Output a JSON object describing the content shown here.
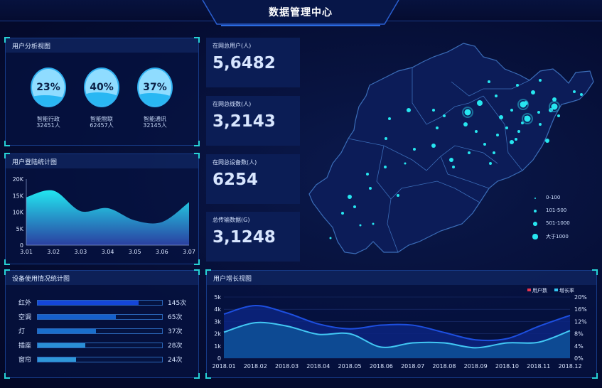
{
  "header": {
    "title": "数据管理中心"
  },
  "user_analysis": {
    "title": "用户分析视图",
    "items": [
      {
        "percent": "23%",
        "level": 0.23,
        "name": "智能行政",
        "count": "32451人"
      },
      {
        "percent": "40%",
        "level": 0.4,
        "name": "智能物联",
        "count": "62457人"
      },
      {
        "percent": "37%",
        "level": 0.37,
        "name": "智能通讯",
        "count": "32145人"
      }
    ]
  },
  "login_chart": {
    "title": "用户登陆统计图"
  },
  "stats": [
    {
      "label": "在网总用户(人)",
      "value": "5,6482"
    },
    {
      "label": "在网总线数(人)",
      "value": "3,2143"
    },
    {
      "label": "在网总设备数(人)",
      "value": "6254"
    },
    {
      "label": "总传输数据(G)",
      "value": "3,1248"
    }
  ],
  "map": {
    "legend": [
      "0-100",
      "101-500",
      "501-1000",
      "大于1000"
    ],
    "dot_color": "#27e6f0"
  },
  "device_usage": {
    "title": "设备使用情况统计图",
    "items": [
      {
        "name": "红外",
        "count": "145次",
        "fill": 0.81,
        "color": "#1446d8"
      },
      {
        "name": "空调",
        "count": "65次",
        "fill": 0.63,
        "color": "#1560cc"
      },
      {
        "name": "灯",
        "count": "37次",
        "fill": 0.47,
        "color": "#1a6fcc"
      },
      {
        "name": "插座",
        "count": "28次",
        "fill": 0.38,
        "color": "#2a8fd6"
      },
      {
        "name": "窗帘",
        "count": "24次",
        "fill": 0.31,
        "color": "#2f97d8"
      }
    ]
  },
  "growth_chart": {
    "title": "用户增长视图"
  },
  "chart_data": [
    {
      "type": "area",
      "title": "用户登陆统计图",
      "categories": [
        "3.01",
        "3.02",
        "3.03",
        "3.04",
        "3.05",
        "3.06",
        "3.07"
      ],
      "values": [
        14500,
        16500,
        10300,
        11200,
        7500,
        7000,
        13000
      ],
      "ylim": [
        0,
        20000
      ],
      "yticks": [
        "0",
        "5K",
        "10K",
        "15K",
        "20K"
      ],
      "color": "#22e0f0"
    },
    {
      "type": "area",
      "title": "用户增长视图",
      "categories": [
        "2018.01",
        "2018.02",
        "2018.03",
        "2018.04",
        "2018.05",
        "2018.06",
        "2018.07",
        "2018.08",
        "2018.09",
        "2018.10",
        "2018.11",
        "2018.12"
      ],
      "series": [
        {
          "name": "用户数",
          "axis": "left",
          "values": [
            3600,
            4300,
            3700,
            2800,
            2400,
            2700,
            2700,
            2100,
            1500,
            1600,
            2600,
            3500
          ],
          "color": "#e8344e"
        },
        {
          "name": "增长率",
          "axis": "right",
          "values": [
            8.5,
            11.6,
            10.5,
            7.8,
            8,
            3.6,
            5,
            5,
            3.4,
            5,
            5.2,
            9
          ],
          "color": "#33c6f2"
        }
      ],
      "ylim_left": [
        0,
        5000
      ],
      "yticks_left": [
        "0",
        "1k",
        "2k",
        "3k",
        "4k",
        "5k"
      ],
      "ylim_right": [
        0,
        20
      ],
      "yticks_right": [
        "0%",
        "4%",
        "8%",
        "12%",
        "16%",
        "20%"
      ],
      "legend": "top-right",
      "grid": true
    }
  ]
}
